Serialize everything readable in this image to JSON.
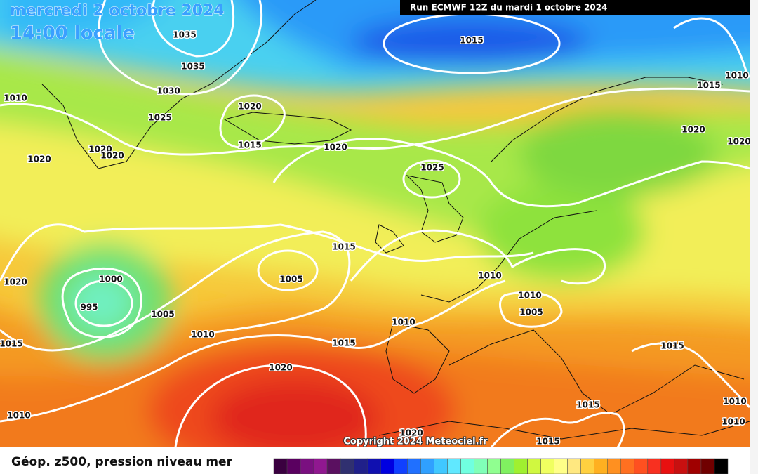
{
  "header": {
    "date": "mercredi 2 octobre 2024",
    "time": "14:00 locale",
    "run": "Run ECMWF 12Z du mardi 1 octobre 2024"
  },
  "isobar_labels": [
    1035,
    1035,
    1030,
    1025,
    1020,
    1015,
    1020,
    1015,
    1010,
    1015,
    1020,
    1020,
    1010,
    1020,
    1020,
    1020,
    1025,
    1015,
    1005,
    1000,
    995,
    1005,
    1010,
    1015,
    1010,
    1010,
    1010,
    1005,
    1020,
    1015,
    1020,
    1015,
    1015,
    1010,
    1010,
    1020,
    1015,
    1010
  ],
  "copyright": "Copyright 2024 Meteociel.fr",
  "legend": {
    "title": "Géop. z500, pression niveau mer"
  }
}
